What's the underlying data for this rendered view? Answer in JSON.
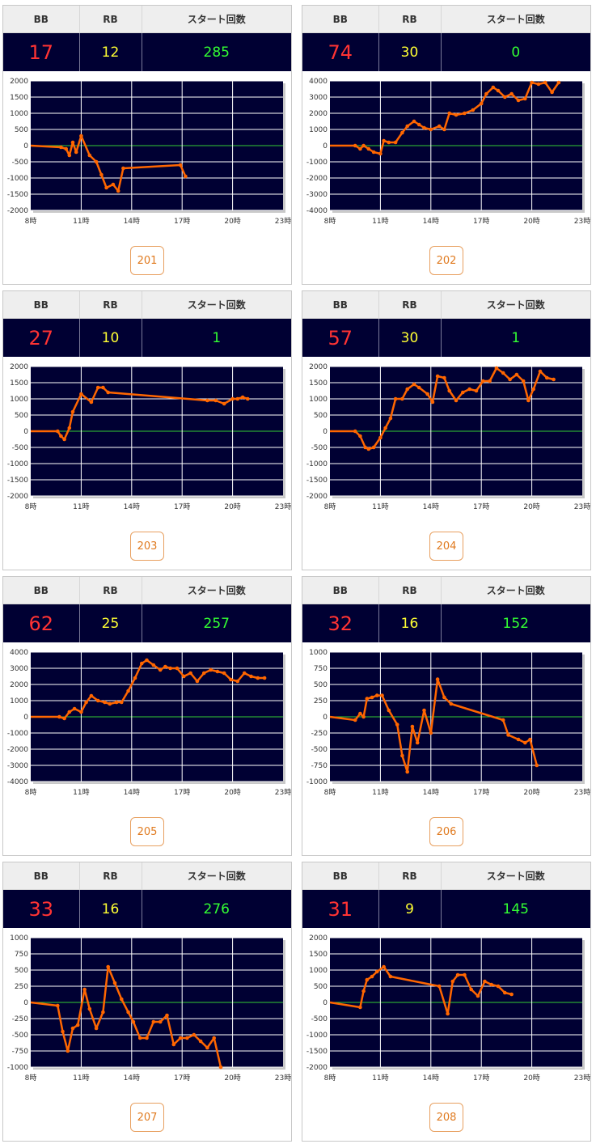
{
  "headers": {
    "bb": "BB",
    "rb": "RB",
    "start": "スタート回数"
  },
  "colors": {
    "plot_bg": "#000033",
    "grid": "#ffffff",
    "zero_line": "#33cc33",
    "series": "#ff6600",
    "bb": "#ff3333",
    "rb": "#ffff33",
    "start": "#33ff33"
  },
  "machines": [
    {
      "bb": "17",
      "rb": "12",
      "start": "285",
      "button": "201"
    },
    {
      "bb": "74",
      "rb": "30",
      "start": "0",
      "button": "202"
    },
    {
      "bb": "27",
      "rb": "10",
      "start": "1",
      "button": "203"
    },
    {
      "bb": "57",
      "rb": "30",
      "start": "1",
      "button": "204"
    },
    {
      "bb": "62",
      "rb": "25",
      "start": "257",
      "button": "205"
    },
    {
      "bb": "32",
      "rb": "16",
      "start": "152",
      "button": "206"
    },
    {
      "bb": "33",
      "rb": "16",
      "start": "276",
      "button": "207"
    },
    {
      "bb": "31",
      "rb": "9",
      "start": "145",
      "button": "208"
    }
  ],
  "chart_data": [
    {
      "type": "line",
      "xlim": [
        8,
        23
      ],
      "ylim": [
        -2000,
        2000
      ],
      "y_ticks": [
        "2000",
        "1500",
        "1000",
        "500",
        "0",
        "-500",
        "-1000",
        "-1500",
        "-2000"
      ],
      "x_ticks": [
        "8時",
        "11時",
        "14時",
        "17時",
        "20時",
        "23時"
      ],
      "x": [
        8,
        9.8,
        10.1,
        10.3,
        10.5,
        10.7,
        11,
        11.5,
        11.9,
        12.2,
        12.5,
        12.9,
        13.2,
        13.5,
        16.9,
        17.2
      ],
      "y": [
        0,
        -50,
        -100,
        -300,
        100,
        -200,
        300,
        -300,
        -500,
        -900,
        -1300,
        -1200,
        -1400,
        -700,
        -600,
        -950
      ]
    },
    {
      "type": "line",
      "xlim": [
        8,
        23
      ],
      "ylim": [
        -4000,
        4000
      ],
      "y_ticks": [
        "4000",
        "3000",
        "2000",
        "1000",
        "0",
        "-1000",
        "-2000",
        "-3000",
        "-4000"
      ],
      "x_ticks": [
        "8時",
        "11時",
        "14時",
        "17時",
        "20時",
        "23時"
      ],
      "x": [
        8,
        9.5,
        9.8,
        10,
        10.3,
        10.6,
        11,
        11.2,
        11.5,
        11.9,
        12.3,
        12.6,
        13,
        13.3,
        13.6,
        14,
        14.5,
        14.8,
        15.1,
        15.5,
        16,
        16.5,
        17,
        17.3,
        17.7,
        18,
        18.4,
        18.8,
        19.2,
        19.6,
        20,
        20.4,
        20.8,
        21.2,
        21.6
      ],
      "y": [
        0,
        0,
        -200,
        0,
        -200,
        -400,
        -500,
        300,
        200,
        200,
        800,
        1200,
        1500,
        1300,
        1100,
        1000,
        1200,
        1000,
        2000,
        1900,
        2000,
        2200,
        2600,
        3200,
        3600,
        3400,
        3000,
        3200,
        2800,
        2900,
        3900,
        3800,
        3900,
        3300,
        3900
      ]
    },
    {
      "type": "line",
      "xlim": [
        8,
        23
      ],
      "ylim": [
        -2000,
        2000
      ],
      "y_ticks": [
        "2000",
        "1500",
        "1000",
        "500",
        "0",
        "-500",
        "-1000",
        "-1500",
        "-2000"
      ],
      "x_ticks": [
        "8時",
        "11時",
        "14時",
        "17時",
        "20時",
        "23時"
      ],
      "x": [
        8,
        9.6,
        9.8,
        10,
        10.3,
        10.5,
        11,
        11.6,
        12,
        12.3,
        12.6,
        18.5,
        19,
        19.5,
        20,
        20.3,
        20.6,
        20.9
      ],
      "y": [
        0,
        0,
        -150,
        -250,
        100,
        600,
        1150,
        900,
        1350,
        1350,
        1200,
        950,
        950,
        850,
        1000,
        1000,
        1050,
        1000
      ]
    },
    {
      "type": "line",
      "xlim": [
        8,
        23
      ],
      "ylim": [
        -2000,
        2000
      ],
      "y_ticks": [
        "2000",
        "1500",
        "1000",
        "500",
        "0",
        "-500",
        "-1000",
        "-1500",
        "-2000"
      ],
      "x_ticks": [
        "8時",
        "11時",
        "14時",
        "17時",
        "20時",
        "23時"
      ],
      "x": [
        8,
        9.5,
        9.8,
        10.1,
        10.3,
        10.6,
        11,
        11.3,
        11.6,
        11.9,
        12.3,
        12.6,
        13,
        13.3,
        13.8,
        14.1,
        14.4,
        14.8,
        15.1,
        15.5,
        15.9,
        16.3,
        16.7,
        17.1,
        17.5,
        17.9,
        18.3,
        18.7,
        19.1,
        19.5,
        19.8,
        20.1,
        20.5,
        20.9,
        21.3
      ],
      "y": [
        0,
        0,
        -150,
        -500,
        -550,
        -500,
        -200,
        100,
        400,
        1000,
        1000,
        1300,
        1450,
        1350,
        1150,
        900,
        1700,
        1650,
        1250,
        950,
        1200,
        1300,
        1250,
        1550,
        1550,
        1950,
        1800,
        1600,
        1750,
        1550,
        950,
        1300,
        1850,
        1650,
        1600
      ]
    },
    {
      "type": "line",
      "xlim": [
        8,
        23
      ],
      "ylim": [
        -4000,
        4000
      ],
      "y_ticks": [
        "4000",
        "3000",
        "2000",
        "1000",
        "0",
        "-1000",
        "-2000",
        "-3000",
        "-4000"
      ],
      "x_ticks": [
        "8時",
        "11時",
        "14時",
        "17時",
        "20時",
        "23時"
      ],
      "x": [
        8,
        9.7,
        10,
        10.3,
        10.6,
        11,
        11.3,
        11.6,
        12,
        12.4,
        12.7,
        13.1,
        13.4,
        13.8,
        14.2,
        14.6,
        14.9,
        15.3,
        15.7,
        16,
        16.3,
        16.7,
        17.1,
        17.5,
        17.9,
        18.3,
        18.7,
        19.1,
        19.5,
        19.9,
        20.3,
        20.7,
        21.1,
        21.5,
        21.9
      ],
      "y": [
        0,
        0,
        -100,
        300,
        500,
        300,
        900,
        1300,
        1000,
        900,
        800,
        900,
        900,
        1600,
        2400,
        3300,
        3500,
        3200,
        2900,
        3100,
        3000,
        3000,
        2500,
        2700,
        2200,
        2700,
        2900,
        2800,
        2700,
        2300,
        2200,
        2700,
        2500,
        2400,
        2400
      ]
    },
    {
      "type": "line",
      "xlim": [
        8,
        23
      ],
      "ylim": [
        -1000,
        1000
      ],
      "y_ticks": [
        "1000",
        "750",
        "500",
        "250",
        "0",
        "-250",
        "-500",
        "-750",
        "-1000"
      ],
      "x_ticks": [
        "8時",
        "11時",
        "14時",
        "17時",
        "20時",
        "23時"
      ],
      "x": [
        8,
        9.5,
        9.8,
        10,
        10.2,
        10.5,
        10.8,
        11.1,
        11.5,
        12,
        12.3,
        12.6,
        12.9,
        13.2,
        13.6,
        14,
        14.4,
        14.8,
        15.2,
        18.3,
        18.6,
        19.2,
        19.6,
        19.9,
        20.3
      ],
      "y": [
        0,
        -50,
        50,
        0,
        280,
        300,
        330,
        330,
        100,
        -120,
        -600,
        -850,
        -150,
        -400,
        100,
        -250,
        580,
        300,
        200,
        -50,
        -280,
        -350,
        -400,
        -350,
        -750
      ]
    },
    {
      "type": "line",
      "xlim": [
        8,
        23
      ],
      "ylim": [
        -1000,
        1000
      ],
      "y_ticks": [
        "1000",
        "750",
        "500",
        "250",
        "0",
        "-250",
        "-500",
        "-750",
        "-1000"
      ],
      "x_ticks": [
        "8時",
        "11時",
        "14時",
        "17時",
        "20時",
        "23時"
      ],
      "x": [
        8,
        9.6,
        9.9,
        10.2,
        10.5,
        10.8,
        11.2,
        11.5,
        11.9,
        12.3,
        12.6,
        13,
        13.4,
        13.8,
        14.1,
        14.5,
        14.9,
        15.3,
        15.7,
        16.1,
        16.5,
        16.9,
        17.3,
        17.7,
        18.1,
        18.5,
        18.9,
        19.3
      ],
      "y": [
        0,
        -50,
        -450,
        -750,
        -400,
        -350,
        200,
        -100,
        -400,
        -150,
        550,
        300,
        50,
        -150,
        -300,
        -550,
        -550,
        -300,
        -300,
        -200,
        -650,
        -550,
        -550,
        -500,
        -600,
        -700,
        -550,
        -1000
      ]
    },
    {
      "type": "line",
      "xlim": [
        8,
        23
      ],
      "ylim": [
        -2000,
        2000
      ],
      "y_ticks": [
        "2000",
        "1500",
        "1000",
        "500",
        "0",
        "-500",
        "-1000",
        "-1500",
        "-2000"
      ],
      "x_ticks": [
        "8時",
        "11時",
        "14時",
        "17時",
        "20時",
        "23時"
      ],
      "x": [
        8,
        9.8,
        10,
        10.2,
        10.5,
        10.8,
        11.2,
        11.6,
        14.5,
        15,
        15.3,
        15.6,
        16,
        16.4,
        16.8,
        17.2,
        17.6,
        18,
        18.4,
        18.8
      ],
      "y": [
        0,
        -150,
        350,
        700,
        800,
        950,
        1100,
        800,
        500,
        -350,
        650,
        850,
        850,
        400,
        200,
        650,
        550,
        500,
        300,
        250
      ]
    }
  ]
}
